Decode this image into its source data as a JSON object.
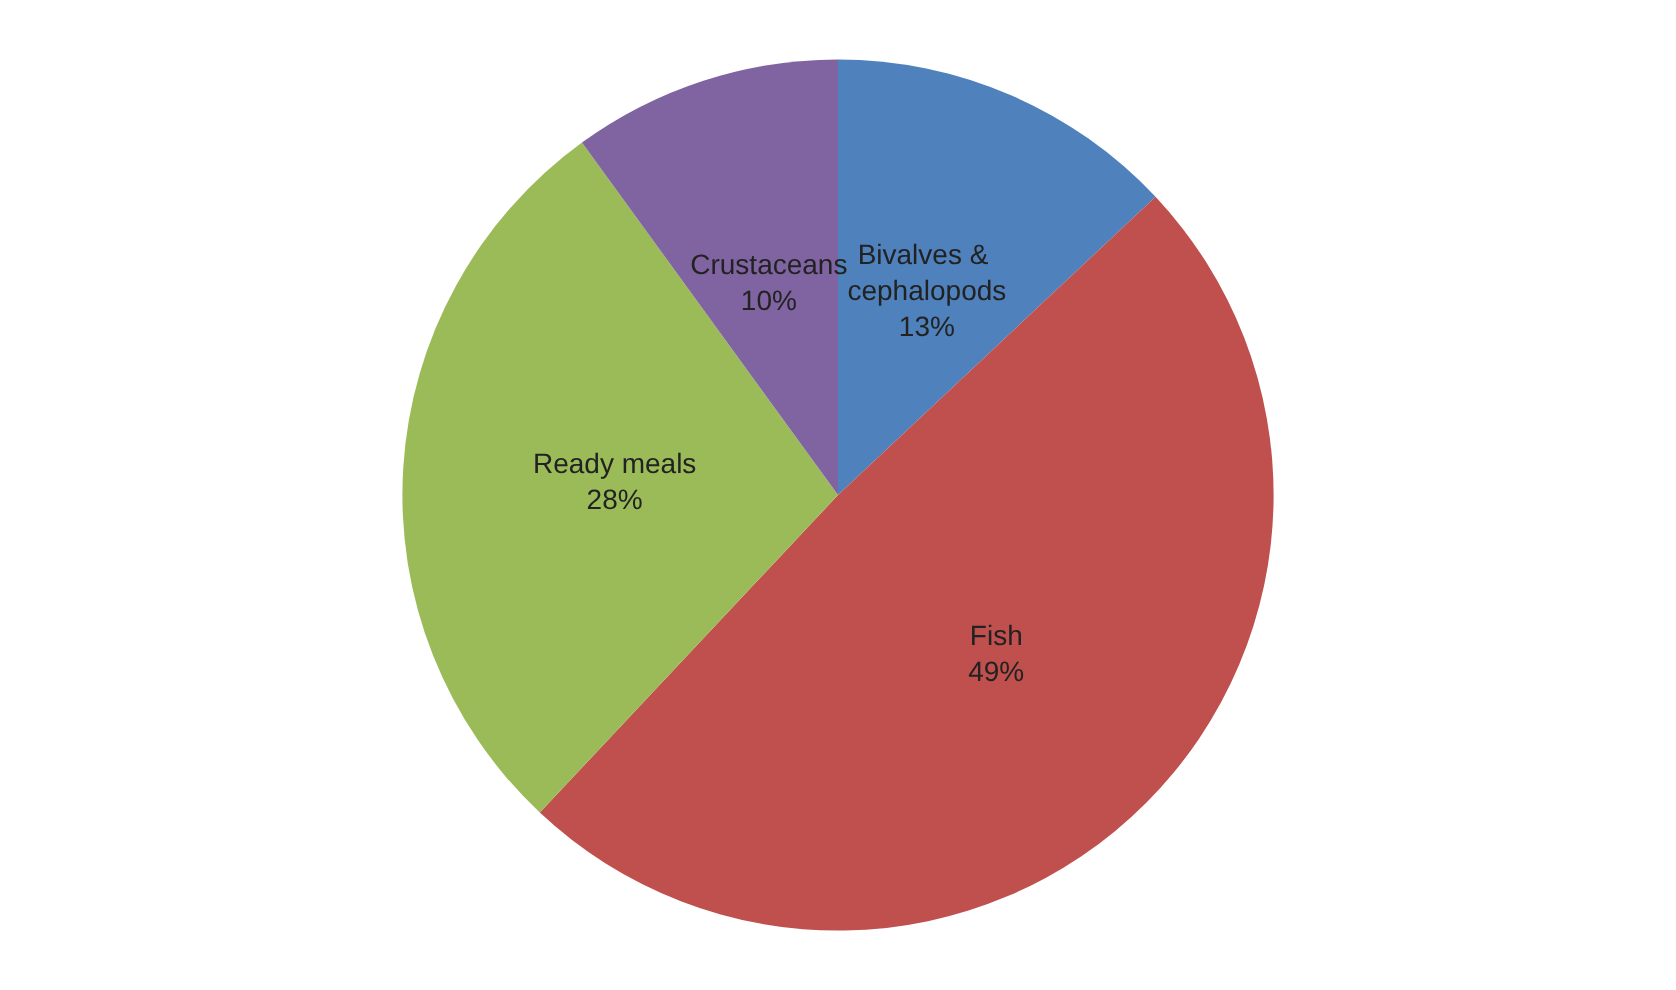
{
  "chart_data": {
    "type": "pie",
    "categories": [
      "Bivalves & cephalopods",
      "Fish",
      "Ready meals",
      "Crustaceans"
    ],
    "values": [
      13,
      49,
      28,
      10
    ],
    "colors": [
      "#4f81bd",
      "#c0504d",
      "#9bbb59",
      "#8064a2"
    ],
    "value_labels": [
      "13%",
      "49%",
      "28%",
      "10%"
    ],
    "legend": false
  }
}
